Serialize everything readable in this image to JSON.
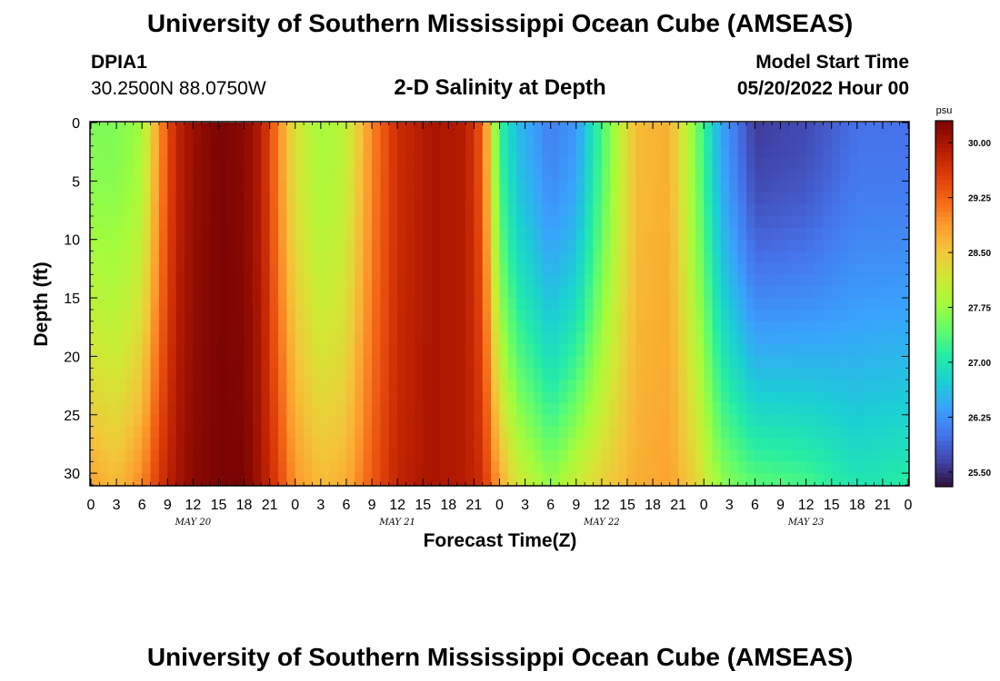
{
  "header": {
    "title": "University of Southern Mississippi Ocean Cube (AMSEAS)",
    "station": "DPIA1",
    "coords": "30.2500N  88.0750W",
    "subtitle": "2-D Salinity at Depth",
    "model_label": "Model Start Time",
    "model_date": "05/20/2022 Hour 00"
  },
  "footer": {
    "title": "University of Southern Mississippi Ocean Cube (AMSEAS)"
  },
  "chart_data": {
    "type": "heatmap",
    "title": "2-D Salinity at Depth",
    "xlabel": "Forecast Time(Z)",
    "ylabel": "Depth (ft)",
    "colorbar_unit": "psu",
    "x_hours_range": [
      0,
      96
    ],
    "x_ticks": [
      "0",
      "3",
      "6",
      "9",
      "12",
      "15",
      "18",
      "21",
      "0",
      "3",
      "6",
      "9",
      "12",
      "15",
      "18",
      "21",
      "0",
      "3",
      "6",
      "9",
      "12",
      "15",
      "18",
      "21",
      "0",
      "3",
      "6",
      "9",
      "12",
      "15",
      "18",
      "21",
      "0"
    ],
    "x_date_labels": [
      {
        "label": "MAY 20",
        "at_hour": 12
      },
      {
        "label": "MAY 21",
        "at_hour": 36
      },
      {
        "label": "MAY 22",
        "at_hour": 60
      },
      {
        "label": "MAY 23",
        "at_hour": 84
      }
    ],
    "y_ticks": [
      0,
      5,
      10,
      15,
      20,
      25,
      30
    ],
    "y_range": [
      0,
      31
    ],
    "y_inverted": true,
    "colorbar_ticks": [
      "30.00",
      "29.25",
      "28.50",
      "27.75",
      "27.00",
      "26.25",
      "25.50"
    ],
    "colorbar_range": [
      25.3,
      30.3
    ],
    "colormap": [
      "#30123b",
      "#4145ab",
      "#4675ed",
      "#39a2fc",
      "#1bcfd4",
      "#24eca6",
      "#61fc6c",
      "#a4fc3b",
      "#d1e834",
      "#f3c63a",
      "#fe9b2d",
      "#f36315",
      "#d93806",
      "#b11901",
      "#7a0403"
    ],
    "salinity_profiles_psu": [
      {
        "hour": 0,
        "surface": 27.6,
        "bottom": 28.8
      },
      {
        "hour": 3,
        "surface": 27.6,
        "bottom": 28.6
      },
      {
        "hour": 6,
        "surface": 27.8,
        "bottom": 29.0
      },
      {
        "hour": 8,
        "surface": 28.9,
        "bottom": 29.6
      },
      {
        "hour": 10,
        "surface": 29.8,
        "bottom": 30.0
      },
      {
        "hour": 12,
        "surface": 30.1,
        "bottom": 30.2
      },
      {
        "hour": 15,
        "surface": 30.3,
        "bottom": 30.3
      },
      {
        "hour": 18,
        "surface": 30.2,
        "bottom": 30.3
      },
      {
        "hour": 20,
        "surface": 29.9,
        "bottom": 30.0
      },
      {
        "hour": 22,
        "surface": 29.0,
        "bottom": 29.5
      },
      {
        "hour": 24,
        "surface": 28.2,
        "bottom": 28.9
      },
      {
        "hour": 27,
        "surface": 27.8,
        "bottom": 28.6
      },
      {
        "hour": 30,
        "surface": 28.0,
        "bottom": 28.7
      },
      {
        "hour": 33,
        "surface": 29.0,
        "bottom": 29.3
      },
      {
        "hour": 36,
        "surface": 29.7,
        "bottom": 29.8
      },
      {
        "hour": 40,
        "surface": 30.0,
        "bottom": 30.0
      },
      {
        "hour": 44,
        "surface": 29.9,
        "bottom": 29.9
      },
      {
        "hour": 46,
        "surface": 29.3,
        "bottom": 29.7
      },
      {
        "hour": 48,
        "surface": 27.2,
        "bottom": 28.8
      },
      {
        "hour": 50,
        "surface": 26.6,
        "bottom": 28.2
      },
      {
        "hour": 54,
        "surface": 26.1,
        "bottom": 27.7
      },
      {
        "hour": 57,
        "surface": 26.3,
        "bottom": 28.1
      },
      {
        "hour": 60,
        "surface": 27.3,
        "bottom": 28.4
      },
      {
        "hour": 64,
        "surface": 28.6,
        "bottom": 28.7
      },
      {
        "hour": 68,
        "surface": 28.7,
        "bottom": 28.8
      },
      {
        "hour": 71,
        "surface": 27.6,
        "bottom": 28.4
      },
      {
        "hour": 74,
        "surface": 26.4,
        "bottom": 27.7
      },
      {
        "hour": 78,
        "surface": 25.6,
        "bottom": 27.4
      },
      {
        "hour": 84,
        "surface": 25.7,
        "bottom": 27.3
      },
      {
        "hour": 90,
        "surface": 26.0,
        "bottom": 27.0
      },
      {
        "hour": 96,
        "surface": 26.0,
        "bottom": 27.1
      }
    ]
  }
}
